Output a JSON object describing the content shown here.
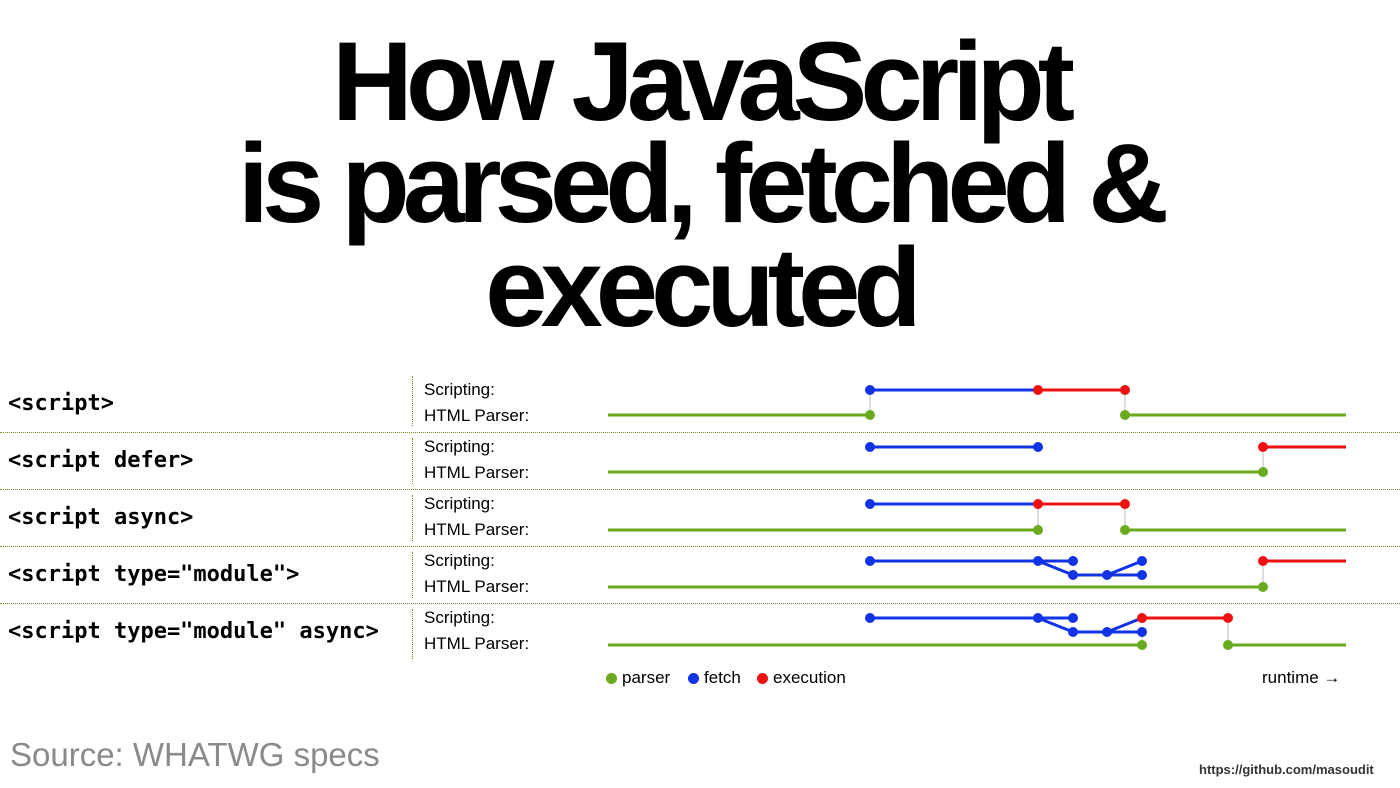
{
  "title": {
    "line1": "How JavaScript",
    "line2": "is parsed, fetched &",
    "line3": "executed"
  },
  "lane_labels": {
    "scripting": "Scripting:",
    "parser": "HTML Parser:"
  },
  "rows": [
    {
      "label": "<script>"
    },
    {
      "label": "<script defer>"
    },
    {
      "label": "<script async>"
    },
    {
      "label": "<script type=\"module\">"
    },
    {
      "label": "<script type=\"module\" async>"
    }
  ],
  "legend": [
    {
      "label": "parser",
      "color": "#6aaa1e"
    },
    {
      "label": "fetch",
      "color": "#1133e6"
    },
    {
      "label": "execution",
      "color": "#ee1111"
    }
  ],
  "runtime_label": "runtime →",
  "source": "Source: WHATWG specs",
  "url": "https://github.com/masoudit",
  "colors": {
    "parser": "#6aaa1e",
    "fetch": "#1133e6",
    "execution": "#ee1111",
    "divider": "#6b8e23"
  }
}
